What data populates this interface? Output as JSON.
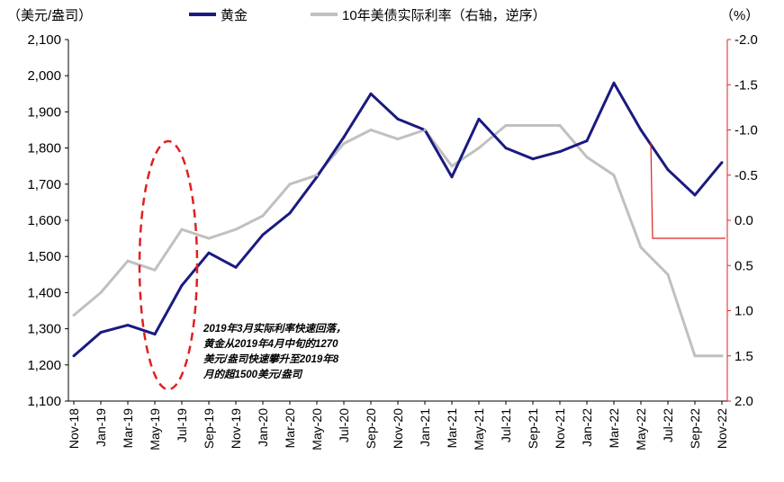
{
  "chart_data": {
    "type": "line",
    "left_unit": "（美元/盎司）",
    "right_unit": "（%）",
    "y_left": {
      "min": 1100,
      "max": 2100,
      "ticks": [
        1100,
        1200,
        1300,
        1400,
        1500,
        1600,
        1700,
        1800,
        1900,
        2000,
        2100
      ],
      "tick_labels": [
        "1,100",
        "1,200",
        "1,300",
        "1,400",
        "1,500",
        "1,600",
        "1,700",
        "1,800",
        "1,900",
        "2,000",
        "2,100"
      ]
    },
    "y_right": {
      "min": -2.0,
      "max": 2.0,
      "inverted": true,
      "ticks": [
        -2.0,
        -1.5,
        -1.0,
        -0.5,
        0.0,
        0.5,
        1.0,
        1.5,
        2.0
      ],
      "tick_labels": [
        "-2.0",
        "-1.5",
        "-1.0",
        "-0.5",
        "0.0",
        "0.5",
        "1.0",
        "1.5",
        "2.0"
      ]
    },
    "x_categories": [
      "Nov-18",
      "Jan-19",
      "Mar-19",
      "May-19",
      "Jul-19",
      "Sep-19",
      "Nov-19",
      "Jan-20",
      "Mar-20",
      "May-20",
      "Jul-20",
      "Sep-20",
      "Nov-20",
      "Jan-21",
      "Mar-21",
      "May-21",
      "Jul-21",
      "Sep-21",
      "Nov-21",
      "Jan-22",
      "Mar-22",
      "May-22",
      "Jul-22",
      "Sep-22",
      "Nov-22"
    ],
    "series": [
      {
        "name": "黄金",
        "axis": "left",
        "color": "#1a1a80",
        "x": [
          "Nov-18",
          "Jan-19",
          "Mar-19",
          "May-19",
          "Jul-19",
          "Sep-19",
          "Nov-19",
          "Jan-20",
          "Mar-20",
          "May-20",
          "Jul-20",
          "Sep-20",
          "Nov-20",
          "Jan-21",
          "Mar-21",
          "May-21",
          "Jul-21",
          "Sep-21",
          "Nov-21",
          "Jan-22",
          "Mar-22",
          "May-22",
          "Jul-22",
          "Sep-22",
          "Nov-22"
        ],
        "values": [
          1225,
          1290,
          1310,
          1285,
          1420,
          1510,
          1470,
          1560,
          1620,
          1720,
          1830,
          1950,
          1880,
          1850,
          1720,
          1880,
          1800,
          1770,
          1790,
          1820,
          1980,
          1850,
          1740,
          1670,
          1760
        ]
      },
      {
        "name": "10年美债实际利率（右轴，逆序）",
        "axis": "right",
        "color": "#c0c0c0",
        "x": [
          "Nov-18",
          "Jan-19",
          "Mar-19",
          "May-19",
          "Jul-19",
          "Sep-19",
          "Nov-19",
          "Jan-20",
          "Mar-20",
          "May-20",
          "Jul-20",
          "Sep-20",
          "Nov-20",
          "Jan-21",
          "Mar-21",
          "May-21",
          "Jul-21",
          "Sep-21",
          "Nov-21",
          "Jan-22",
          "Mar-22",
          "May-22",
          "Jul-22",
          "Sep-22",
          "Nov-22"
        ],
        "values": [
          1.05,
          0.8,
          0.45,
          0.55,
          0.1,
          0.2,
          0.1,
          -0.05,
          -0.4,
          -0.5,
          -0.85,
          -1.0,
          -0.9,
          -1.0,
          -0.6,
          -0.8,
          -1.05,
          -1.05,
          -1.05,
          -0.7,
          -0.5,
          0.3,
          0.6,
          1.5,
          1.5
        ]
      }
    ],
    "legend": {
      "position": "top",
      "entries": [
        "黄金",
        "10年美债实际利率（右轴，逆序）"
      ]
    },
    "annotation": {
      "lines": [
        "2019年3月实际利率快速回落，",
        "黄金从2019年4月中旬的1270",
        "美元/盎司快速攀升至2019年8",
        "月的超1500美元/盎司"
      ],
      "ellipse_color": "#e02020"
    },
    "marker_line_color": "#e02020"
  }
}
